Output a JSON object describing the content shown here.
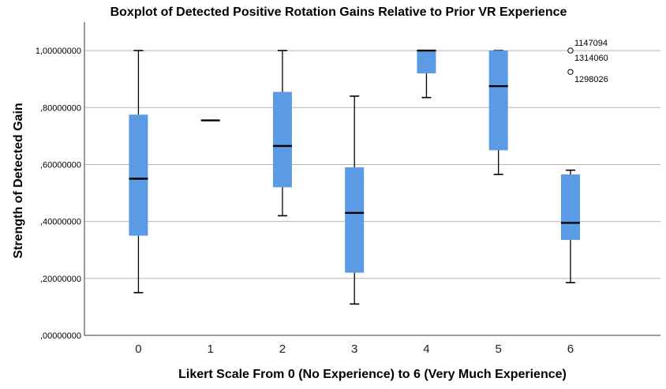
{
  "chart_data": {
    "type": "boxplot",
    "title": "Boxplot of Detected Positive Rotation Gains Relative to Prior VR Experience",
    "xlabel": "Likert Scale From 0 (No Experience) to 6 (Very Much Experience)",
    "ylabel": "Strength of Detected Gain",
    "ylim": [
      0,
      1.1
    ],
    "yticks": [
      {
        "value": 0.0,
        "label": ",00000000"
      },
      {
        "value": 0.2,
        "label": ",20000000"
      },
      {
        "value": 0.4,
        "label": ",40000000"
      },
      {
        "value": 0.6,
        "label": ",60000000"
      },
      {
        "value": 0.8,
        "label": ",80000000"
      },
      {
        "value": 1.0,
        "label": "1,00000000"
      }
    ],
    "grid": "horizontal",
    "box_color": "#5b9be6",
    "categories": [
      "0",
      "1",
      "2",
      "3",
      "4",
      "5",
      "6"
    ],
    "boxes": [
      {
        "category": "0",
        "min": 0.15,
        "q1": 0.35,
        "median": 0.55,
        "q3": 0.775,
        "max": 1.0
      },
      {
        "category": "1",
        "min": 0.755,
        "q1": 0.755,
        "median": 0.755,
        "q3": 0.755,
        "max": 0.755
      },
      {
        "category": "2",
        "min": 0.42,
        "q1": 0.52,
        "median": 0.665,
        "q3": 0.855,
        "max": 1.0
      },
      {
        "category": "3",
        "min": 0.11,
        "q1": 0.22,
        "median": 0.43,
        "q3": 0.59,
        "max": 0.84
      },
      {
        "category": "4",
        "min": 0.835,
        "q1": 0.92,
        "median": 1.0,
        "q3": 1.0,
        "max": 1.0
      },
      {
        "category": "5",
        "min": 0.565,
        "q1": 0.65,
        "median": 0.875,
        "q3": 1.0,
        "max": 1.0
      },
      {
        "category": "6",
        "min": 0.185,
        "q1": 0.335,
        "median": 0.395,
        "q3": 0.565,
        "max": 0.58
      }
    ],
    "outliers": [
      {
        "category": "6",
        "value": 1.0,
        "labels": [
          "1147094",
          "1314060"
        ]
      },
      {
        "category": "6",
        "value": 0.925,
        "labels": [
          "1298026"
        ]
      }
    ]
  }
}
